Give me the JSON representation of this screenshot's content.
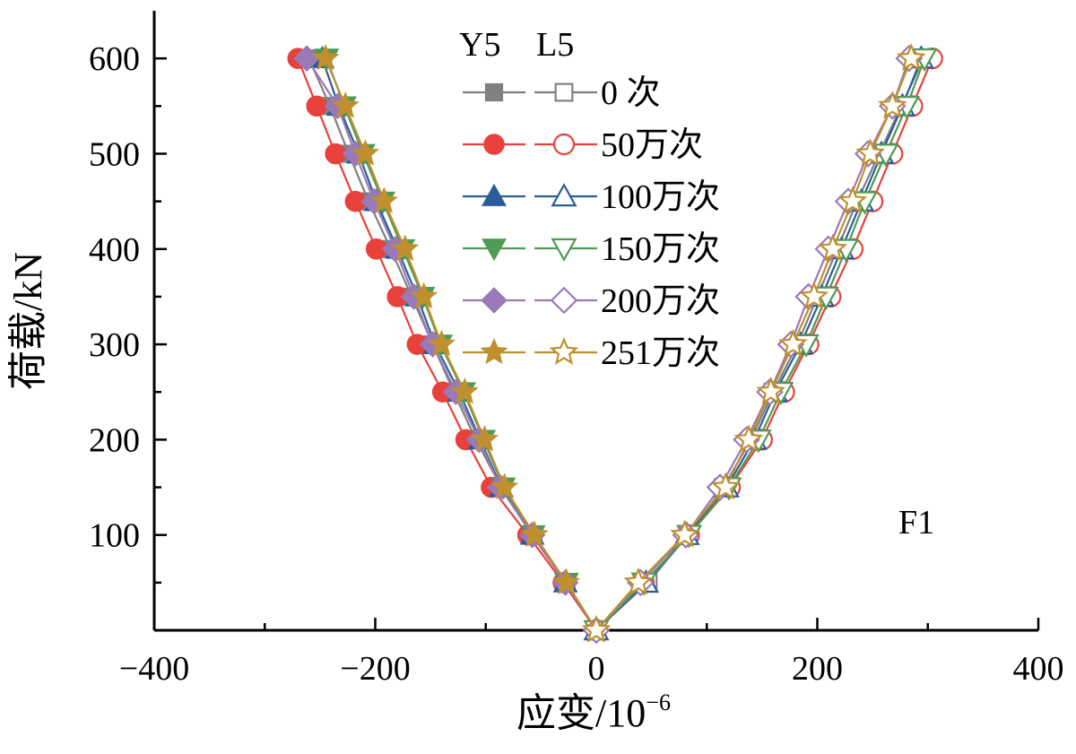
{
  "chart_data": {
    "type": "line",
    "xlabel": "应变/10",
    "xlabel_exponent": "−6",
    "ylabel": "荷载/kN",
    "xlim": [
      -400,
      400
    ],
    "ylim": [
      0,
      650
    ],
    "x_ticks": [
      -400,
      -200,
      0,
      200,
      400
    ],
    "x_tick_labels": [
      "−400",
      "−200",
      "0",
      "200",
      "400"
    ],
    "y_ticks": [
      100,
      200,
      300,
      400,
      500,
      600
    ],
    "y_tick_labels": [
      "100",
      "200",
      "300",
      "400",
      "500",
      "600"
    ],
    "annotation": "F1",
    "legend": {
      "placement": "top-center",
      "header_left": "Y5",
      "header_right": "L5",
      "labels": [
        "0 次",
        "50万次",
        "100万次",
        "150万次",
        "200万次",
        "251万次"
      ]
    },
    "loads": [
      0,
      50,
      100,
      150,
      200,
      250,
      300,
      350,
      400,
      450,
      500,
      550,
      600
    ],
    "series": [
      {
        "name": "0 次",
        "color": "#808080",
        "marker": "square",
        "y5_strain": [
          0,
          -27,
          -57,
          -86,
          -109,
          -129,
          -148,
          -167,
          -186,
          -206,
          -224,
          -241,
          -260
        ],
        "l5_strain": [
          0,
          47,
          83,
          115,
          140,
          160,
          182,
          200,
          218,
          236,
          256,
          276,
          296
        ]
      },
      {
        "name": "50万次",
        "color": "#e8413c",
        "marker": "circle",
        "y5_strain": [
          0,
          -30,
          -62,
          -95,
          -118,
          -139,
          -162,
          -180,
          -199,
          -218,
          -236,
          -253,
          -270
        ],
        "l5_strain": [
          0,
          43,
          84,
          121,
          150,
          170,
          192,
          212,
          232,
          250,
          268,
          286,
          304
        ]
      },
      {
        "name": "100万次",
        "color": "#2b5d9b",
        "marker": "triangle-up",
        "y5_strain": [
          0,
          -28,
          -58,
          -86,
          -105,
          -124,
          -146,
          -162,
          -180,
          -199,
          -215,
          -233,
          -248
        ],
        "l5_strain": [
          0,
          45,
          82,
          118,
          143,
          162,
          185,
          204,
          222,
          240,
          258,
          277,
          294
        ]
      },
      {
        "name": "150万次",
        "color": "#4f9a55",
        "marker": "triangle-down",
        "y5_strain": [
          0,
          -27,
          -57,
          -84,
          -102,
          -120,
          -141,
          -157,
          -175,
          -193,
          -211,
          -228,
          -244
        ],
        "l5_strain": [
          0,
          43,
          84,
          120,
          147,
          167,
          190,
          208,
          226,
          243,
          262,
          281,
          297
        ]
      },
      {
        "name": "200万次",
        "color": "#9a79b8",
        "marker": "diamond",
        "y5_strain": [
          0,
          -28,
          -58,
          -87,
          -106,
          -127,
          -148,
          -165,
          -182,
          -201,
          -218,
          -234,
          -262
        ],
        "l5_strain": [
          0,
          40,
          81,
          112,
          136,
          157,
          176,
          192,
          210,
          228,
          246,
          268,
          283
        ]
      },
      {
        "name": "251万次",
        "color": "#c0902f",
        "marker": "star",
        "y5_strain": [
          0,
          -27,
          -56,
          -83,
          -101,
          -119,
          -140,
          -156,
          -173,
          -192,
          -209,
          -227,
          -245
        ],
        "l5_strain": [
          0,
          38,
          80,
          117,
          138,
          158,
          178,
          197,
          214,
          232,
          248,
          268,
          285
        ]
      }
    ]
  }
}
